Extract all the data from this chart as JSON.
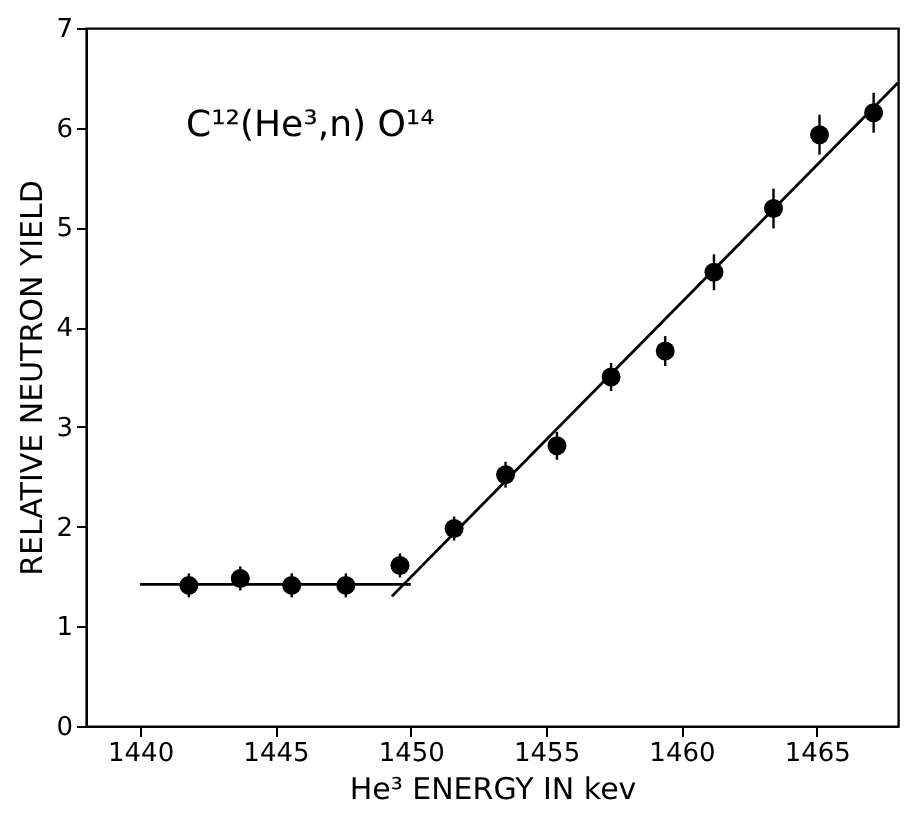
{
  "chart_data": {
    "type": "scatter",
    "xlabel": "He³ ENERGY IN kev",
    "ylabel": "RELATIVE NEUTRON YIELD",
    "annotations": [
      "C¹²(He³,n) O¹⁴"
    ],
    "xlim": [
      1438,
      1468
    ],
    "xticks": [
      1440,
      1445,
      1450,
      1455,
      1460,
      1465
    ],
    "ylim": [
      0,
      7
    ],
    "yticks": [
      0,
      1,
      2,
      3,
      4,
      5,
      6,
      7
    ],
    "grid": false,
    "marker": "circle",
    "series": [
      {
        "color": "#000000",
        "x": [
          1441.8,
          1443.7,
          1445.6,
          1447.6,
          1449.6,
          1451.6,
          1453.5,
          1455.4,
          1457.4,
          1459.4,
          1461.2,
          1463.4,
          1465.1,
          1467.1
        ],
        "values": [
          1.41,
          1.48,
          1.41,
          1.41,
          1.61,
          1.98,
          2.52,
          2.81,
          3.5,
          3.76,
          4.55,
          5.19,
          5.93,
          6.15
        ],
        "errors": [
          0.12,
          0.12,
          0.12,
          0.12,
          0.12,
          0.12,
          0.13,
          0.14,
          0.14,
          0.15,
          0.18,
          0.2,
          0.2,
          0.2
        ]
      },
      {
        "type": "line",
        "marker": "none",
        "color": "#000000",
        "x": [
          1440,
          1450
        ],
        "values": [
          1.42,
          1.42
        ]
      },
      {
        "type": "line",
        "marker": "none",
        "color": "#000000",
        "x": [
          1449.3,
          1468
        ],
        "values": [
          1.3,
          6.45
        ]
      }
    ]
  }
}
